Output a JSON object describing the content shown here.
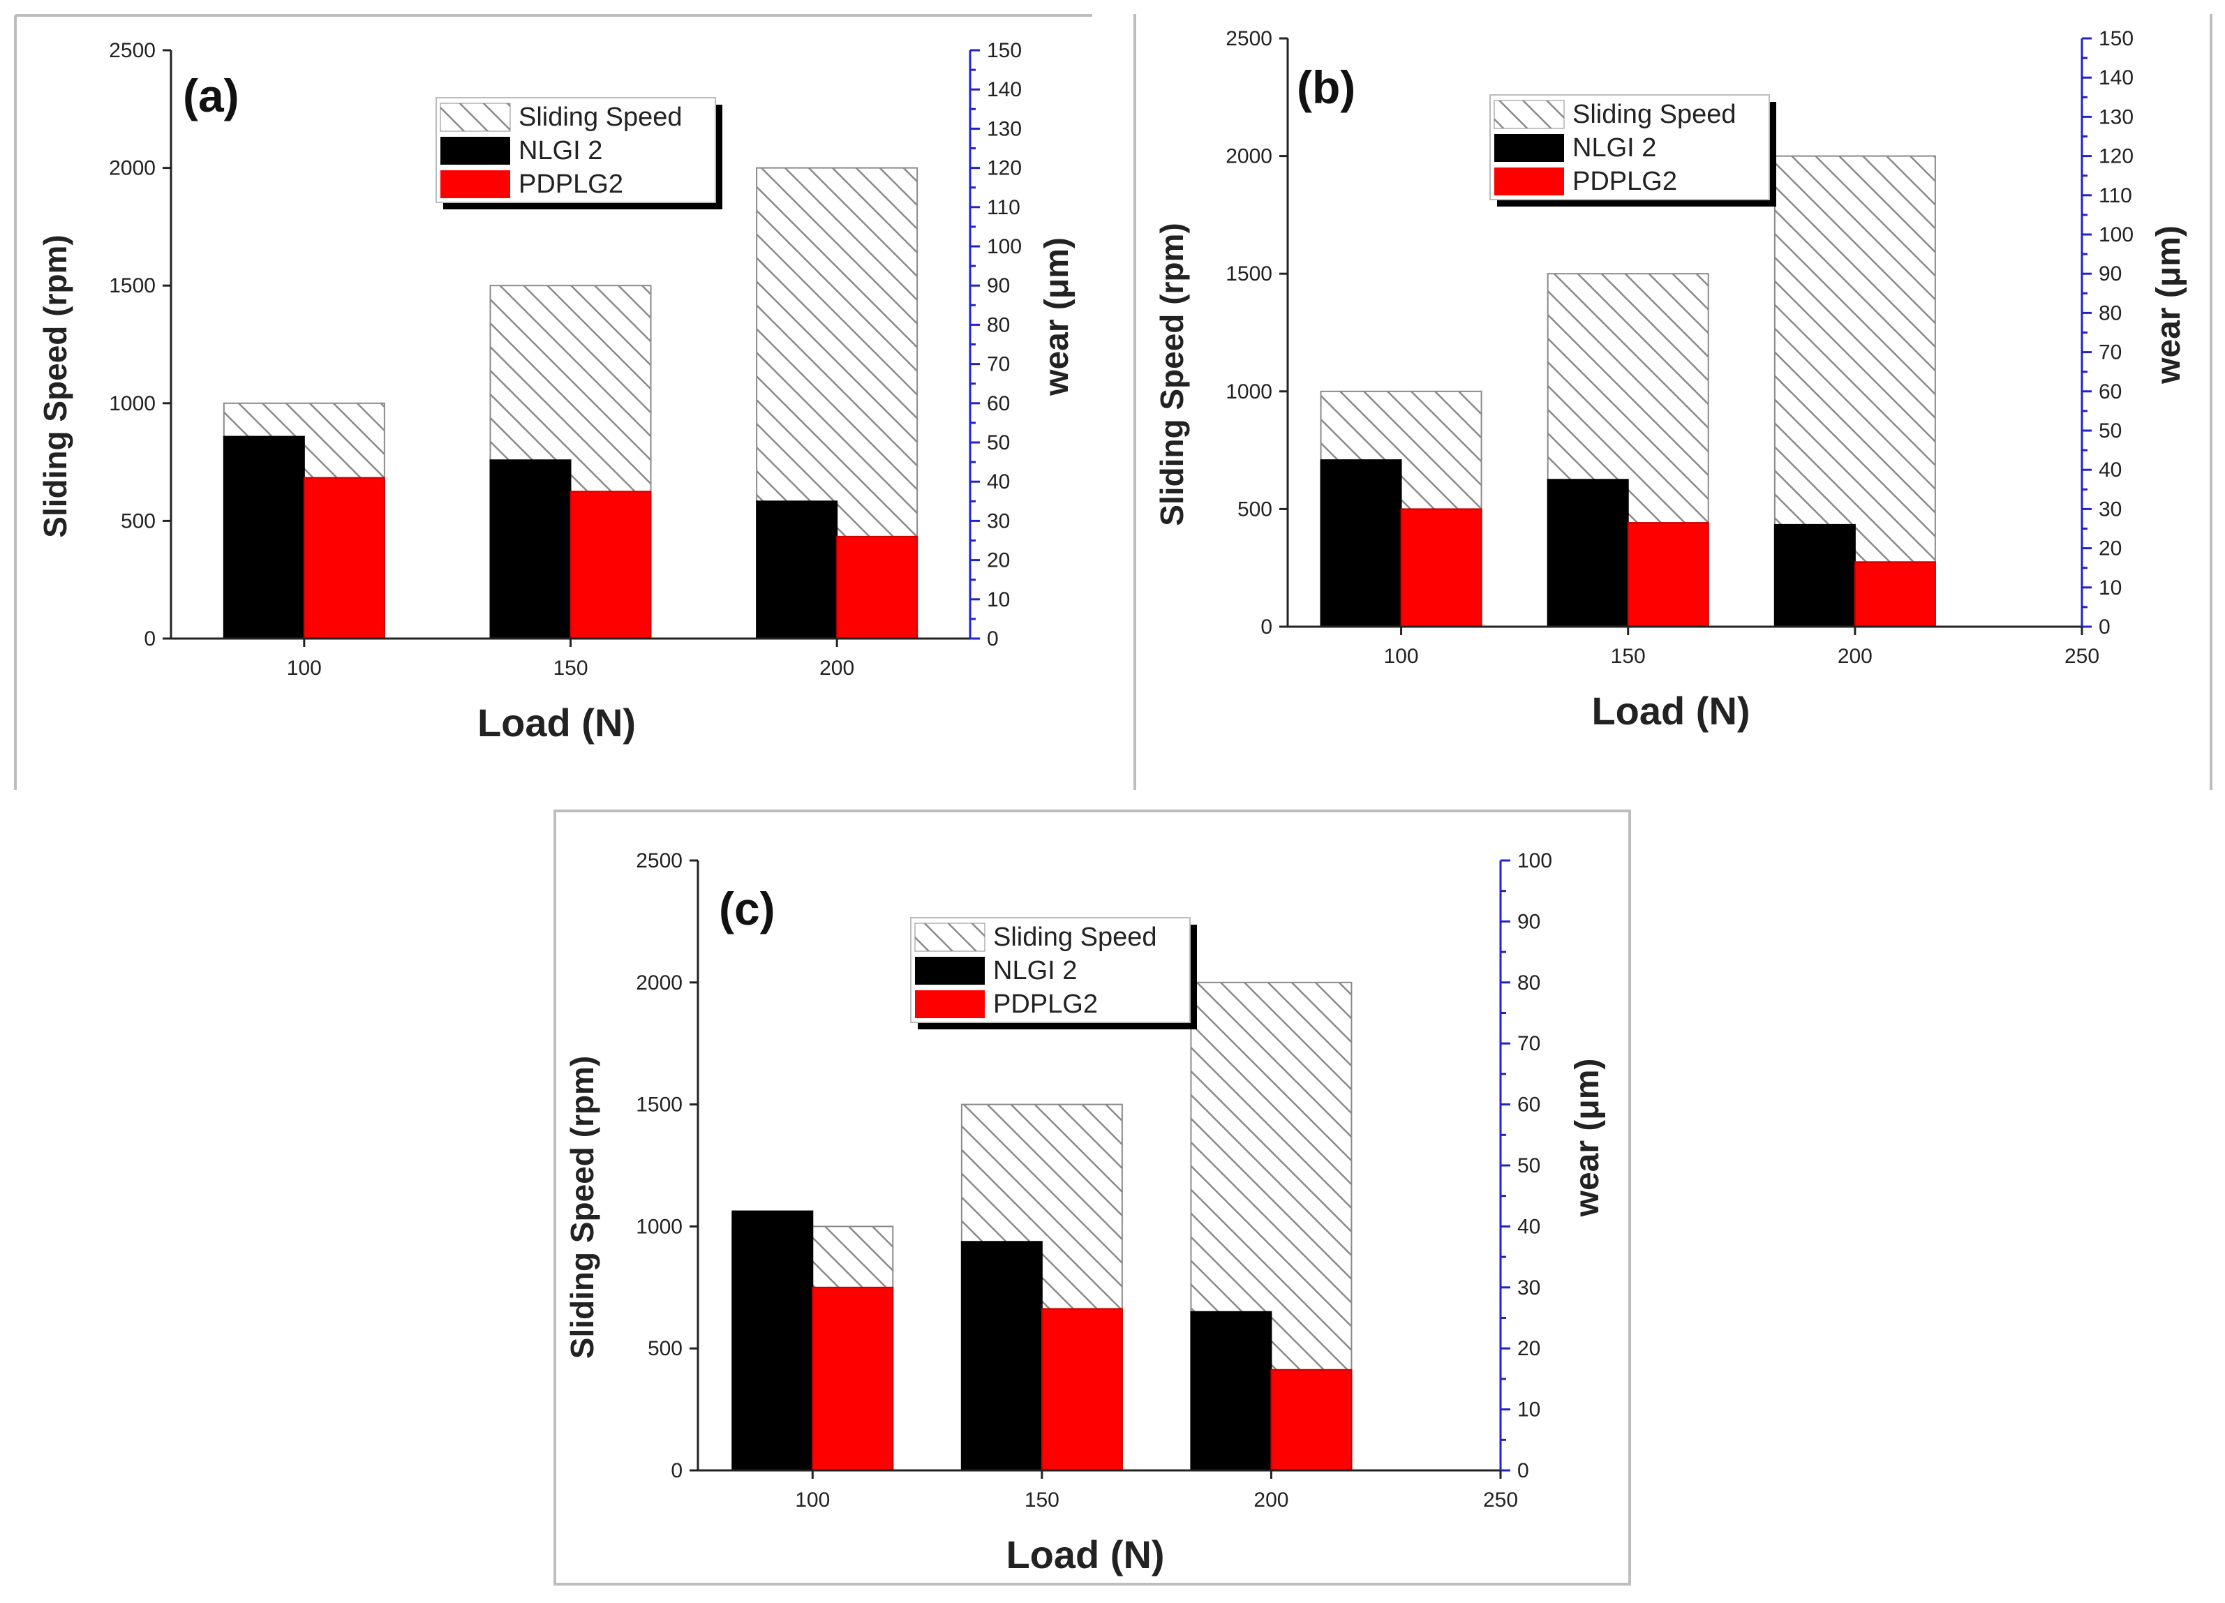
{
  "colors": {
    "nlgi": "#000000",
    "pdplg": "#ff0000",
    "hatch": "#8a8a8a",
    "right_axis": "#2222cc",
    "axis": "#222222"
  },
  "chart_data": [
    {
      "panel": "a",
      "panel_label": "(a)",
      "type": "bar",
      "categories": [
        "100",
        "150",
        "200"
      ],
      "x_ticks": [
        "100",
        "150",
        "200"
      ],
      "xlabel": "Load (N)",
      "ylabel": "Sliding Speed (rpm)",
      "ylabel_right": "wear (μm)",
      "ylim": [
        0,
        2500
      ],
      "y_ticks": [
        "0",
        "500",
        "1000",
        "1500",
        "2000",
        "2500"
      ],
      "ylim_right": [
        0,
        150
      ],
      "y2_ticks": [
        "0",
        "10",
        "20",
        "30",
        "40",
        "50",
        "60",
        "70",
        "80",
        "90",
        "100",
        "110",
        "120",
        "130",
        "140",
        "150"
      ],
      "legend": [
        "Sliding Speed",
        "NLGI 2",
        "PDPLG2"
      ],
      "series": [
        {
          "name": "Sliding Speed",
          "axis": "left",
          "values": [
            1000,
            1500,
            2000
          ]
        },
        {
          "name": "NLGI 2",
          "axis": "right",
          "values": [
            51.5,
            45.5,
            35
          ]
        },
        {
          "name": "PDPLG2",
          "axis": "right",
          "values": [
            41,
            37.5,
            26
          ]
        }
      ]
    },
    {
      "panel": "b",
      "panel_label": "(b)",
      "type": "bar",
      "categories": [
        "100",
        "150",
        "200"
      ],
      "x_ticks": [
        "100",
        "150",
        "200",
        "250"
      ],
      "xlabel": "Load (N)",
      "ylabel": "Sliding Speed (rpm)",
      "ylabel_right": "wear (μm)",
      "ylim": [
        0,
        2500
      ],
      "y_ticks": [
        "0",
        "500",
        "1000",
        "1500",
        "2000",
        "2500"
      ],
      "ylim_right": [
        0,
        150
      ],
      "y2_ticks": [
        "0",
        "10",
        "20",
        "30",
        "40",
        "50",
        "60",
        "70",
        "80",
        "90",
        "100",
        "110",
        "120",
        "130",
        "140",
        "150"
      ],
      "legend": [
        "Sliding Speed",
        "NLGI 2",
        "PDPLG2"
      ],
      "series": [
        {
          "name": "Sliding Speed",
          "axis": "left",
          "values": [
            1000,
            1500,
            2000
          ]
        },
        {
          "name": "NLGI 2",
          "axis": "right",
          "values": [
            42.5,
            37.5,
            26
          ]
        },
        {
          "name": "PDPLG2",
          "axis": "right",
          "values": [
            30,
            26.5,
            16.5
          ]
        }
      ]
    },
    {
      "panel": "c",
      "panel_label": "(c)",
      "type": "bar",
      "categories": [
        "100",
        "150",
        "200"
      ],
      "x_ticks": [
        "100",
        "150",
        "200",
        "250"
      ],
      "xlabel": "Load (N)",
      "ylabel": "Sliding Speed (rpm)",
      "ylabel_right": "wear (μm)",
      "ylim": [
        0,
        2500
      ],
      "y_ticks": [
        "0",
        "500",
        "1000",
        "1500",
        "2000",
        "2500"
      ],
      "ylim_right": [
        0,
        100
      ],
      "y2_ticks": [
        "0",
        "10",
        "20",
        "30",
        "40",
        "50",
        "60",
        "70",
        "80",
        "90",
        "100"
      ],
      "legend": [
        "Sliding Speed",
        "NLGI 2",
        "PDPLG2"
      ],
      "series": [
        {
          "name": "Sliding Speed",
          "axis": "left",
          "values": [
            1000,
            1500,
            2000
          ]
        },
        {
          "name": "NLGI 2",
          "axis": "right",
          "values": [
            42.5,
            37.5,
            26
          ]
        },
        {
          "name": "PDPLG2",
          "axis": "right",
          "values": [
            30,
            26.5,
            16.5
          ]
        }
      ]
    }
  ]
}
